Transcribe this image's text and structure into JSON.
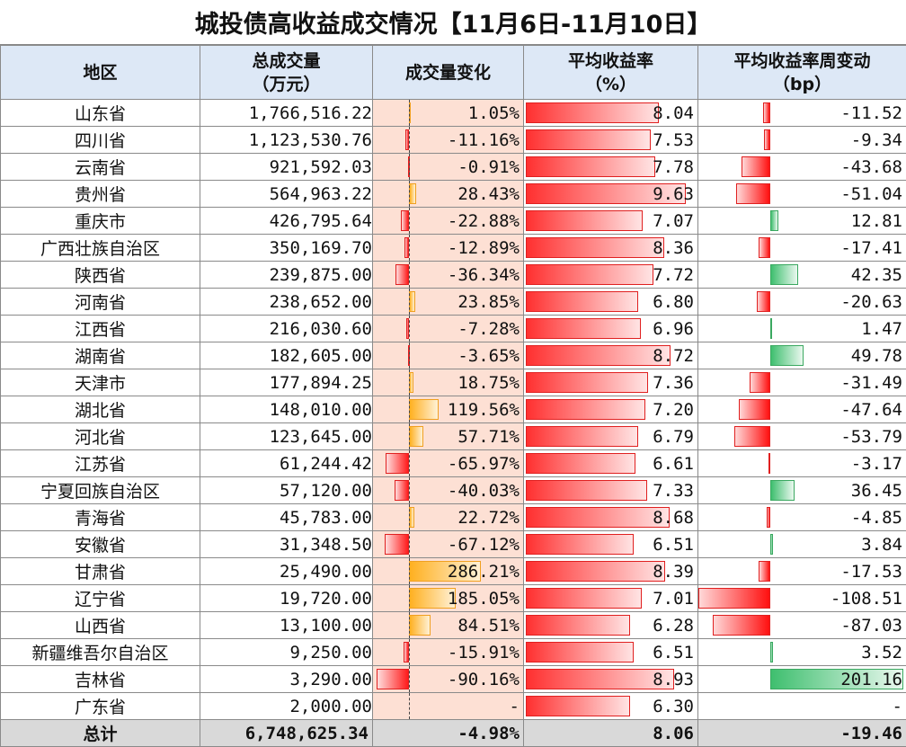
{
  "title": "城投债高收益成交情况【11月6日-11月10日】",
  "headers": {
    "region": "地区",
    "volume_l1": "总成交量",
    "volume_l2": "（万元）",
    "change": "成交量变化",
    "yield_l1": "平均收益率",
    "yield_l2": "（%）",
    "bp_l1": "平均收益率周变动",
    "bp_l2": "（bp）"
  },
  "colors": {
    "header_bg": "#dde8f6",
    "bar_cell_bg": "#fde0d4",
    "red_bar": "#ff1b1b",
    "orange_bar": "#ffb020",
    "green_bar": "#3fbf6f",
    "total_bg": "#d9d9d9"
  },
  "rows": [
    {
      "region": "山东省",
      "volume": "1,766,516.22",
      "change": "1.05%",
      "change_val": 1.05,
      "yield": "8.04",
      "yield_val": 8.04,
      "bp": "-11.52",
      "bp_val": -11.52
    },
    {
      "region": "四川省",
      "volume": "1,123,530.76",
      "change": "-11.16%",
      "change_val": -11.16,
      "yield": "7.53",
      "yield_val": 7.53,
      "bp": "-9.34",
      "bp_val": -9.34
    },
    {
      "region": "云南省",
      "volume": "921,592.03",
      "change": "-0.91%",
      "change_val": -0.91,
      "yield": "7.78",
      "yield_val": 7.78,
      "bp": "-43.68",
      "bp_val": -43.68
    },
    {
      "region": "贵州省",
      "volume": "564,963.22",
      "change": "28.43%",
      "change_val": 28.43,
      "yield": "9.63",
      "yield_val": 9.63,
      "bp": "-51.04",
      "bp_val": -51.04
    },
    {
      "region": "重庆市",
      "volume": "426,795.64",
      "change": "-22.88%",
      "change_val": -22.88,
      "yield": "7.07",
      "yield_val": 7.07,
      "bp": "12.81",
      "bp_val": 12.81
    },
    {
      "region": "广西壮族自治区",
      "volume": "350,169.70",
      "change": "-12.89%",
      "change_val": -12.89,
      "yield": "8.36",
      "yield_val": 8.36,
      "bp": "-17.41",
      "bp_val": -17.41
    },
    {
      "region": "陕西省",
      "volume": "239,875.00",
      "change": "-36.34%",
      "change_val": -36.34,
      "yield": "7.72",
      "yield_val": 7.72,
      "bp": "42.35",
      "bp_val": 42.35
    },
    {
      "region": "河南省",
      "volume": "238,652.00",
      "change": "23.85%",
      "change_val": 23.85,
      "yield": "6.80",
      "yield_val": 6.8,
      "bp": "-20.63",
      "bp_val": -20.63
    },
    {
      "region": "江西省",
      "volume": "216,030.60",
      "change": "-7.28%",
      "change_val": -7.28,
      "yield": "6.96",
      "yield_val": 6.96,
      "bp": "1.47",
      "bp_val": 1.47
    },
    {
      "region": "湖南省",
      "volume": "182,605.00",
      "change": "-3.65%",
      "change_val": -3.65,
      "yield": "8.72",
      "yield_val": 8.72,
      "bp": "49.78",
      "bp_val": 49.78
    },
    {
      "region": "天津市",
      "volume": "177,894.25",
      "change": "18.75%",
      "change_val": 18.75,
      "yield": "7.36",
      "yield_val": 7.36,
      "bp": "-31.49",
      "bp_val": -31.49
    },
    {
      "region": "湖北省",
      "volume": "148,010.00",
      "change": "119.56%",
      "change_val": 119.56,
      "yield": "7.20",
      "yield_val": 7.2,
      "bp": "-47.64",
      "bp_val": -47.64
    },
    {
      "region": "河北省",
      "volume": "123,645.00",
      "change": "57.71%",
      "change_val": 57.71,
      "yield": "6.79",
      "yield_val": 6.79,
      "bp": "-53.79",
      "bp_val": -53.79
    },
    {
      "region": "江苏省",
      "volume": "61,244.42",
      "change": "-65.97%",
      "change_val": -65.97,
      "yield": "6.61",
      "yield_val": 6.61,
      "bp": "-3.17",
      "bp_val": -3.17
    },
    {
      "region": "宁夏回族自治区",
      "volume": "57,120.00",
      "change": "-40.03%",
      "change_val": -40.03,
      "yield": "7.33",
      "yield_val": 7.33,
      "bp": "36.45",
      "bp_val": 36.45
    },
    {
      "region": "青海省",
      "volume": "45,783.00",
      "change": "22.72%",
      "change_val": 22.72,
      "yield": "8.68",
      "yield_val": 8.68,
      "bp": "-4.85",
      "bp_val": -4.85
    },
    {
      "region": "安徽省",
      "volume": "31,348.50",
      "change": "-67.12%",
      "change_val": -67.12,
      "yield": "6.51",
      "yield_val": 6.51,
      "bp": "3.84",
      "bp_val": 3.84
    },
    {
      "region": "甘肃省",
      "volume": "25,490.00",
      "change": "286.21%",
      "change_val": 286.21,
      "yield": "8.39",
      "yield_val": 8.39,
      "bp": "-17.53",
      "bp_val": -17.53
    },
    {
      "region": "辽宁省",
      "volume": "19,720.00",
      "change": "185.05%",
      "change_val": 185.05,
      "yield": "7.01",
      "yield_val": 7.01,
      "bp": "-108.51",
      "bp_val": -108.51
    },
    {
      "region": "山西省",
      "volume": "13,100.00",
      "change": "84.51%",
      "change_val": 84.51,
      "yield": "6.28",
      "yield_val": 6.28,
      "bp": "-87.03",
      "bp_val": -87.03
    },
    {
      "region": "新疆维吾尔自治区",
      "volume": "9,250.00",
      "change": "-15.91%",
      "change_val": -15.91,
      "yield": "6.51",
      "yield_val": 6.51,
      "bp": "3.52",
      "bp_val": 3.52
    },
    {
      "region": "吉林省",
      "volume": "3,290.00",
      "change": "-90.16%",
      "change_val": -90.16,
      "yield": "8.93",
      "yield_val": 8.93,
      "bp": "201.16",
      "bp_val": 201.16
    },
    {
      "region": "广东省",
      "volume": "2,000.00",
      "change": "-",
      "change_val": null,
      "yield": "6.30",
      "yield_val": 6.3,
      "bp": "-",
      "bp_val": null
    }
  ],
  "total": {
    "region": "总计",
    "volume": "6,748,625.34",
    "change": "-4.98%",
    "yield": "8.06",
    "bp": "-19.46"
  }
}
